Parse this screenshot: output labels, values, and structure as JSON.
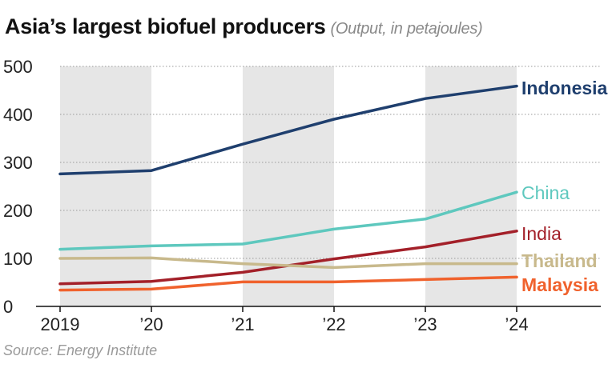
{
  "header": {
    "title": "Asia’s largest biofuel producers",
    "subtitle": "(Output, in petajoules)"
  },
  "source": "Source: Energy Institute",
  "chart_data": {
    "type": "line",
    "x": [
      "2019",
      "’20",
      "’21",
      "’22",
      "’23",
      "’24"
    ],
    "ylim": [
      0,
      500
    ],
    "yticks": [
      0,
      100,
      200,
      300,
      400,
      500
    ],
    "grid": true,
    "shaded_columns": [
      [
        0,
        1
      ],
      [
        2,
        3
      ],
      [
        4,
        5
      ]
    ],
    "legend": "direct labels at line ends (right)",
    "series": [
      {
        "name": "Indonesia",
        "color": "#1f3f6e",
        "bold": true,
        "values": [
          276,
          283,
          338,
          390,
          433,
          459
        ]
      },
      {
        "name": "China",
        "color": "#5ec8be",
        "bold": false,
        "values": [
          119,
          126,
          130,
          161,
          182,
          238
        ]
      },
      {
        "name": "India",
        "color": "#a32029",
        "bold": false,
        "values": [
          47,
          52,
          71,
          99,
          124,
          157
        ]
      },
      {
        "name": "Thailand",
        "color": "#c8b98c",
        "bold": true,
        "values": [
          100,
          101,
          89,
          81,
          89,
          89
        ]
      },
      {
        "name": "Malaysia",
        "color": "#f0622d",
        "bold": true,
        "values": [
          34,
          36,
          51,
          51,
          56,
          61
        ]
      }
    ]
  }
}
